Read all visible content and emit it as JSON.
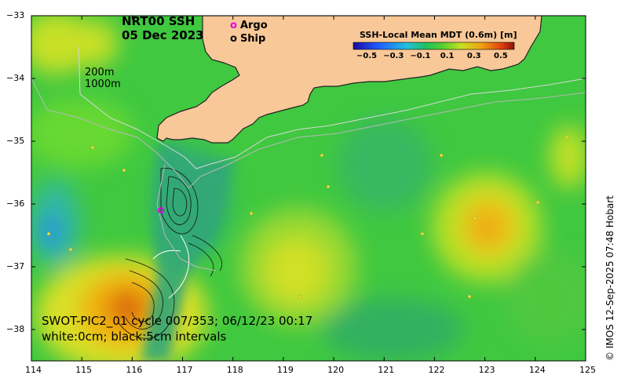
{
  "title": {
    "line1": "NRT00 SSH",
    "line2": "05 Dec 2023"
  },
  "legend": {
    "argo_symbol": "o",
    "argo_label": "Argo",
    "argo_color": "#e000e0",
    "ship_symbol": "o",
    "ship_label": "Ship"
  },
  "isobaths": {
    "label1": "200m",
    "label2": "1000m"
  },
  "colorbar": {
    "title": "SSH-Local Mean MDT (0.6m) [m]",
    "ticks": [
      "−0.5",
      "−0.3",
      "−0.1",
      "0.1",
      "0.3",
      "0.5"
    ],
    "range": [
      -0.6,
      0.6
    ]
  },
  "swot": {
    "line1": "SWOT-PIC2_01 cycle 007/353; 06/12/23 00:17",
    "line2": "white:0cm; black:5cm intervals"
  },
  "copyright": "© IMOS 12-Sep-2025 07:48 Hobart",
  "axes": {
    "x_ticks": [
      "114",
      "115",
      "116",
      "117",
      "118",
      "119",
      "120",
      "121",
      "122",
      "123",
      "124",
      "125"
    ],
    "y_ticks": [
      "−33",
      "−34",
      "−35",
      "−36",
      "−37",
      "−38"
    ],
    "xlim": [
      114,
      125
    ],
    "ylim": [
      -38.5,
      -33
    ]
  },
  "colors": {
    "land": "#f8c898",
    "ocean_base": "#3cc83c",
    "coast": "#222222"
  }
}
